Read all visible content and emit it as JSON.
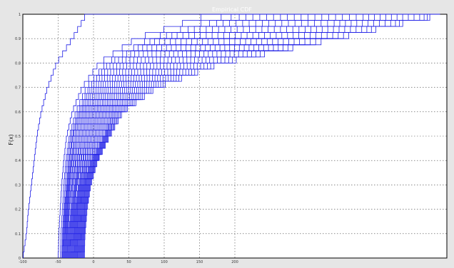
{
  "chart_data": {
    "type": "line",
    "title": "Empirical CDF",
    "xlabel": "",
    "ylabel": "F(x)",
    "xlim": [
      -100,
      500
    ],
    "ylim": [
      0,
      1
    ],
    "x_ticks": [
      -100,
      -50,
      0,
      50,
      100,
      150,
      200
    ],
    "y_ticks": [
      0,
      0.1,
      0.2,
      0.3,
      0.4,
      0.5,
      0.6,
      0.7,
      0.8,
      0.9,
      1
    ],
    "grid": true,
    "line_color": "#1f1fe6",
    "series_count": 36,
    "series": [
      {
        "q": [
          -100,
          -95,
          -92,
          -88,
          -84,
          -80,
          -74,
          -65,
          -52,
          -30,
          -10
        ]
      },
      {
        "q": [
          -50,
          -49,
          -47,
          -45,
          -42,
          -38,
          -30,
          -16,
          8,
          60,
          165
        ]
      },
      {
        "q": [
          -47,
          -46,
          -44,
          -42,
          -39,
          -34,
          -25,
          -10,
          18,
          80,
          195
        ]
      },
      {
        "q": [
          -45,
          -44,
          -42,
          -40,
          -37,
          -32,
          -22,
          -6,
          22,
          88,
          210
        ]
      },
      {
        "q": [
          -44,
          -43,
          -41,
          -38,
          -35,
          -30,
          -20,
          -3,
          27,
          95,
          222
        ]
      },
      {
        "q": [
          -43,
          -42,
          -40,
          -37,
          -34,
          -29,
          -18,
          0,
          32,
          102,
          232
        ]
      },
      {
        "q": [
          -42,
          -41,
          -39,
          -36,
          -32,
          -27,
          -16,
          3,
          37,
          110,
          242
        ]
      },
      {
        "q": [
          -41,
          -40,
          -38,
          -35,
          -31,
          -25,
          -14,
          6,
          42,
          118,
          252
        ]
      },
      {
        "q": [
          -40,
          -39,
          -37,
          -34,
          -30,
          -23,
          -12,
          9,
          47,
          126,
          262
        ]
      },
      {
        "q": [
          -39,
          -38,
          -36,
          -33,
          -28,
          -21,
          -10,
          12,
          52,
          134,
          272
        ]
      },
      {
        "q": [
          -38,
          -37,
          -35,
          -31,
          -27,
          -19,
          -8,
          15,
          57,
          142,
          282
        ]
      },
      {
        "q": [
          -37,
          -36,
          -34,
          -30,
          -25,
          -17,
          -6,
          18,
          62,
          150,
          292
        ]
      },
      {
        "q": [
          -36,
          -35,
          -32,
          -29,
          -24,
          -15,
          -4,
          21,
          67,
          158,
          302
        ]
      },
      {
        "q": [
          -35,
          -34,
          -31,
          -27,
          -22,
          -13,
          -2,
          24,
          72,
          166,
          312
        ]
      },
      {
        "q": [
          -34,
          -33,
          -30,
          -26,
          -21,
          -11,
          0,
          27,
          77,
          174,
          322
        ]
      },
      {
        "q": [
          -33,
          -32,
          -29,
          -25,
          -19,
          -9,
          2,
          30,
          82,
          182,
          332
        ]
      },
      {
        "q": [
          -32,
          -31,
          -28,
          -24,
          -18,
          -7,
          4,
          33,
          87,
          190,
          342
        ]
      },
      {
        "q": [
          -31,
          -30,
          -27,
          -23,
          -16,
          -5,
          6,
          36,
          92,
          198,
          352
        ]
      },
      {
        "q": [
          -30,
          -29,
          -26,
          -21,
          -15,
          -3,
          8,
          39,
          97,
          206,
          362
        ]
      },
      {
        "q": [
          -29,
          -28,
          -25,
          -20,
          -13,
          -1,
          10,
          42,
          102,
          214,
          372
        ]
      },
      {
        "q": [
          -28,
          -27,
          -24,
          -19,
          -12,
          1,
          12,
          45,
          107,
          222,
          382
        ]
      },
      {
        "q": [
          -27,
          -26,
          -23,
          -18,
          -10,
          3,
          14,
          48,
          112,
          230,
          392
        ]
      },
      {
        "q": [
          -26,
          -25,
          -22,
          -17,
          -9,
          5,
          16,
          51,
          117,
          238,
          402
        ]
      },
      {
        "q": [
          -25,
          -24,
          -21,
          -16,
          -7,
          7,
          18,
          54,
          122,
          246,
          410
        ]
      },
      {
        "q": [
          -24,
          -23,
          -20,
          -15,
          -6,
          9,
          20,
          57,
          127,
          254,
          418
        ]
      },
      {
        "q": [
          -23,
          -22,
          -19,
          -14,
          -4,
          11,
          22,
          60,
          132,
          262,
          426
        ]
      },
      {
        "q": [
          -22,
          -21,
          -18,
          -13,
          -3,
          13,
          24,
          63,
          137,
          270,
          434
        ]
      },
      {
        "q": [
          -21,
          -20,
          -17,
          -12,
          -2,
          15,
          26,
          66,
          142,
          278,
          442
        ]
      },
      {
        "q": [
          -20,
          -19,
          -16,
          -11,
          -1,
          16,
          28,
          69,
          147,
          286,
          450
        ]
      },
      {
        "q": [
          -19,
          -18,
          -15,
          -10,
          0,
          17,
          30,
          72,
          152,
          294,
          458
        ]
      },
      {
        "q": [
          -18,
          -17,
          -14,
          -9,
          1,
          18,
          32,
          75,
          157,
          302,
          466
        ]
      },
      {
        "q": [
          -17,
          -16,
          -13,
          -8,
          2,
          19,
          34,
          78,
          162,
          310,
          474
        ]
      },
      {
        "q": [
          -16,
          -15,
          -12,
          -7,
          3,
          20,
          36,
          81,
          167,
          318,
          482
        ]
      },
      {
        "q": [
          -15,
          -14,
          -11,
          -6,
          4,
          21,
          38,
          84,
          172,
          326,
          488
        ]
      },
      {
        "q": [
          -14,
          -13,
          -10,
          -5,
          5,
          22,
          40,
          87,
          177,
          334,
          492
        ]
      },
      {
        "q": [
          -13,
          -12,
          -9,
          -4,
          6,
          23,
          42,
          90,
          182,
          342,
          495
        ]
      }
    ]
  }
}
